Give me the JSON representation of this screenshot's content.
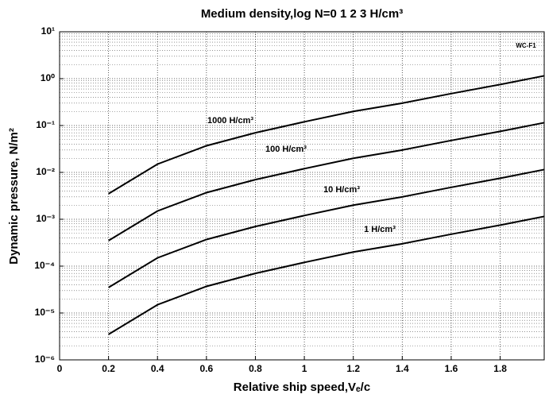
{
  "chart_data": {
    "type": "line",
    "title": "Medium density,log N=0  1  2  3   H/cm³",
    "xlabel": "Relative ship speed,Vₑ/c",
    "ylabel": "Dynamic pressure, N/m²",
    "log_y": true,
    "grid": true,
    "x": [
      0.2,
      0.4,
      0.6,
      0.8,
      1.0,
      1.2,
      1.4,
      1.6,
      1.8,
      1.98
    ],
    "series": [
      {
        "name": "1000 H/cm³",
        "color": "#000000",
        "values": [
          0.0035,
          0.015,
          0.037,
          0.07,
          0.12,
          0.2,
          0.3,
          0.48,
          0.75,
          1.15
        ]
      },
      {
        "name": "100 H/cm³",
        "color": "#000000",
        "values": [
          0.00035,
          0.0015,
          0.0037,
          0.007,
          0.012,
          0.02,
          0.03,
          0.048,
          0.075,
          0.115
        ]
      },
      {
        "name": "10 H/cm³",
        "color": "#000000",
        "values": [
          3.5e-05,
          0.00015,
          0.00037,
          0.0007,
          0.0012,
          0.002,
          0.003,
          0.0048,
          0.0075,
          0.0115
        ]
      },
      {
        "name": "1 H/cm³",
        "color": "#000000",
        "values": [
          3.5e-06,
          1.5e-05,
          3.7e-05,
          7e-05,
          0.00012,
          0.0002,
          0.0003,
          0.00048,
          0.00075,
          0.00115
        ]
      }
    ],
    "annotations": [
      "WC-F1"
    ],
    "xlim": [
      0,
      1.98
    ],
    "xticks": [
      0,
      0.2,
      0.4,
      0.6,
      0.8,
      1,
      1.2,
      1.4,
      1.6,
      1.8
    ],
    "ylim": [
      1e-06,
      10
    ],
    "yticks": [
      {
        "value": 1e-06,
        "label": "10⁻⁶"
      },
      {
        "value": 1e-05,
        "label": "10⁻⁵"
      },
      {
        "value": 0.0001,
        "label": "10⁻⁴"
      },
      {
        "value": 0.001,
        "label": "10⁻³"
      },
      {
        "value": 0.01,
        "label": "10⁻²"
      },
      {
        "value": 0.1,
        "label": "10⁻¹"
      },
      {
        "value": 1,
        "label": "10⁰"
      },
      {
        "value": 10,
        "label": "10¹"
      }
    ]
  }
}
